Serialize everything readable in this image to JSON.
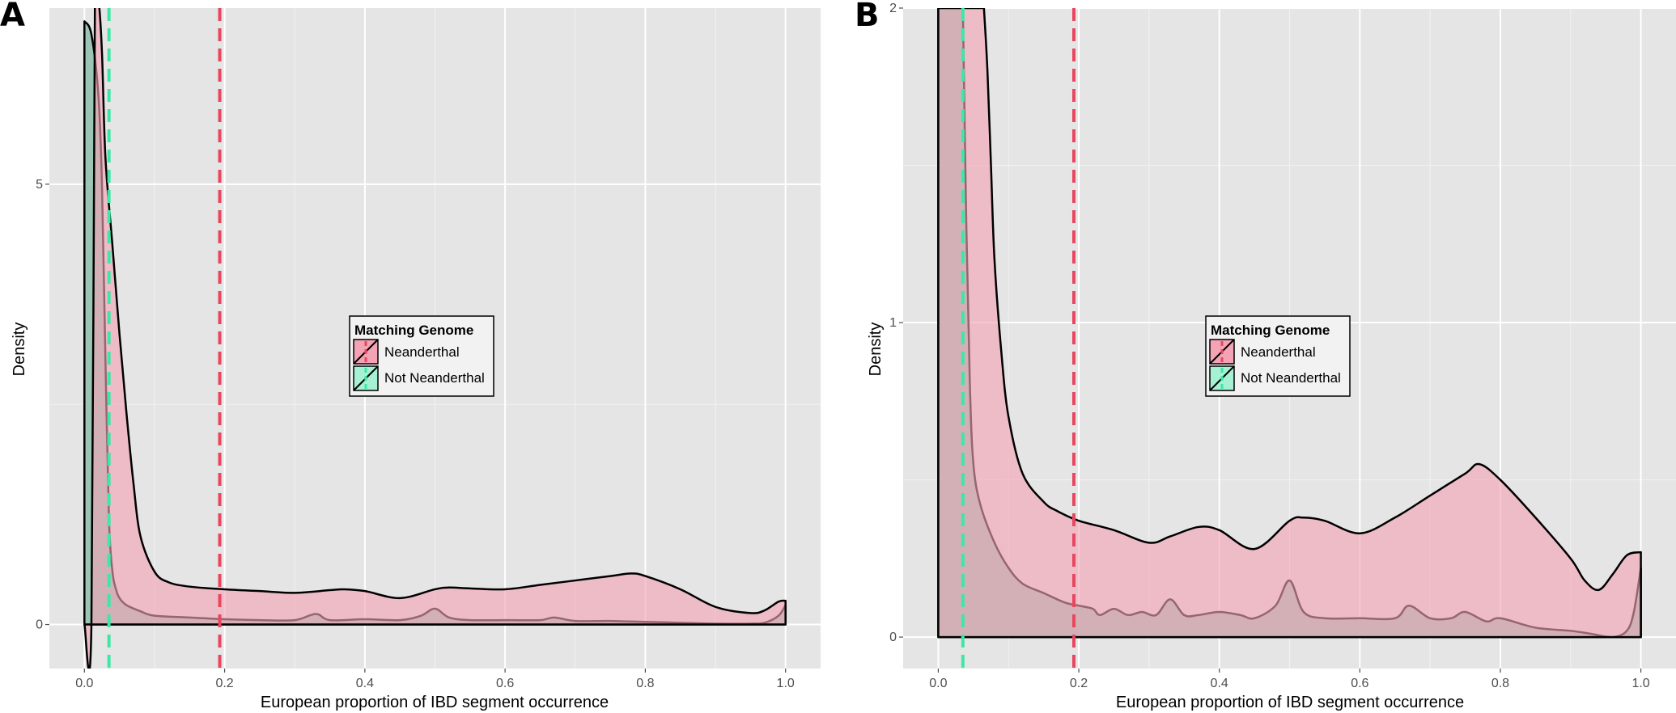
{
  "chart_data": [
    {
      "panel": "A",
      "type": "area",
      "xlabel": "European proportion of IBD segment occurrence",
      "ylabel": "Density",
      "xlim": [
        -0.05,
        1.05
      ],
      "ylim": [
        -0.5,
        7.0
      ],
      "xticks": [
        0.0,
        0.2,
        0.4,
        0.6,
        0.8,
        1.0
      ],
      "xtick_labels": [
        "0.0",
        "0.2",
        "0.4",
        "0.6",
        "0.8",
        "1.0"
      ],
      "yticks": [
        0,
        5
      ],
      "ytick_labels": [
        "0",
        "5"
      ],
      "grid": true,
      "legend": {
        "title": "Matching Genome",
        "placement": "center",
        "entries": [
          "Neanderthal",
          "Not Neanderthal"
        ]
      },
      "series": [
        {
          "name": "Neanderthal",
          "color": "#F4A3B4",
          "x": [
            0,
            0.01,
            0.015,
            0.02,
            0.025,
            0.03,
            0.04,
            0.05,
            0.06,
            0.07,
            0.08,
            0.1,
            0.12,
            0.15,
            0.2,
            0.25,
            0.3,
            0.35,
            0.37,
            0.4,
            0.45,
            0.5,
            0.52,
            0.55,
            0.6,
            0.65,
            0.7,
            0.75,
            0.78,
            0.8,
            0.85,
            0.9,
            0.95,
            0.97,
            0.99,
            1.0
          ],
          "y": [
            0,
            0,
            7.1,
            7.1,
            6.5,
            5.3,
            4.3,
            3.3,
            2.4,
            1.6,
            1.0,
            0.6,
            0.48,
            0.43,
            0.4,
            0.38,
            0.36,
            0.39,
            0.4,
            0.38,
            0.3,
            0.4,
            0.42,
            0.41,
            0.4,
            0.45,
            0.5,
            0.55,
            0.58,
            0.55,
            0.4,
            0.2,
            0.13,
            0.16,
            0.26,
            0.27
          ]
        },
        {
          "name": "Not Neanderthal",
          "color": "#A6F0D4",
          "x": [
            0,
            0.01,
            0.02,
            0.025,
            0.03,
            0.035,
            0.04,
            0.045,
            0.05,
            0.06,
            0.08,
            0.1,
            0.15,
            0.2,
            0.25,
            0.3,
            0.33,
            0.35,
            0.4,
            0.45,
            0.48,
            0.5,
            0.52,
            0.55,
            0.6,
            0.65,
            0.67,
            0.7,
            0.75,
            0.8,
            0.85,
            0.9,
            0.95,
            0.97,
            0.99,
            1.0
          ],
          "y": [
            6.85,
            6.7,
            6.0,
            5.0,
            3.0,
            1.2,
            0.6,
            0.4,
            0.3,
            0.22,
            0.15,
            0.1,
            0.08,
            0.06,
            0.05,
            0.05,
            0.12,
            0.05,
            0.06,
            0.05,
            0.1,
            0.18,
            0.08,
            0.05,
            0.05,
            0.05,
            0.08,
            0.04,
            0.04,
            0.03,
            0.02,
            0.01,
            0.01,
            0.02,
            0.1,
            0.22
          ]
        }
      ],
      "reference_lines": [
        {
          "series": "Not Neanderthal",
          "x": 0.035,
          "color": "#3DE8A6"
        },
        {
          "series": "Neanderthal",
          "x": 0.193,
          "color": "#E8475F"
        }
      ]
    },
    {
      "panel": "B",
      "type": "area",
      "xlabel": "European proportion of IBD segment occurrence",
      "ylabel": "Density",
      "xlim": [
        -0.05,
        1.05
      ],
      "ylim": [
        -0.1,
        2.0
      ],
      "xticks": [
        0.0,
        0.2,
        0.4,
        0.6,
        0.8,
        1.0
      ],
      "xtick_labels": [
        "0.0",
        "0.2",
        "0.4",
        "0.6",
        "0.8",
        "1.0"
      ],
      "yticks": [
        0,
        1,
        2
      ],
      "ytick_labels": [
        "0",
        "1",
        "2"
      ],
      "grid": true,
      "legend": {
        "title": "Matching Genome",
        "placement": "center",
        "entries": [
          "Neanderthal",
          "Not Neanderthal"
        ]
      },
      "series": [
        {
          "name": "Neanderthal",
          "color": "#F4A3B4",
          "x": [
            0.065,
            0.07,
            0.075,
            0.08,
            0.09,
            0.1,
            0.12,
            0.15,
            0.17,
            0.2,
            0.25,
            0.3,
            0.33,
            0.37,
            0.4,
            0.45,
            0.5,
            0.52,
            0.55,
            0.6,
            0.65,
            0.7,
            0.75,
            0.77,
            0.8,
            0.85,
            0.9,
            0.92,
            0.94,
            0.96,
            0.98,
            1.0
          ],
          "y": [
            2.0,
            1.8,
            1.5,
            1.2,
            0.9,
            0.7,
            0.52,
            0.43,
            0.4,
            0.37,
            0.34,
            0.3,
            0.32,
            0.35,
            0.34,
            0.28,
            0.37,
            0.38,
            0.37,
            0.33,
            0.38,
            0.45,
            0.52,
            0.55,
            0.5,
            0.38,
            0.25,
            0.18,
            0.15,
            0.2,
            0.26,
            0.27
          ]
        },
        {
          "name": "Not Neanderthal",
          "color": "#A6F0D4",
          "x": [
            0.035,
            0.04,
            0.045,
            0.05,
            0.06,
            0.08,
            0.1,
            0.12,
            0.15,
            0.18,
            0.2,
            0.22,
            0.23,
            0.25,
            0.27,
            0.29,
            0.31,
            0.33,
            0.35,
            0.37,
            0.4,
            0.43,
            0.45,
            0.48,
            0.5,
            0.52,
            0.55,
            0.6,
            0.65,
            0.67,
            0.7,
            0.73,
            0.75,
            0.78,
            0.8,
            0.85,
            0.9,
            0.93,
            0.96,
            0.98,
            0.99,
            1.0
          ],
          "y": [
            2.0,
            1.3,
            0.8,
            0.55,
            0.42,
            0.3,
            0.22,
            0.17,
            0.14,
            0.11,
            0.1,
            0.09,
            0.07,
            0.09,
            0.07,
            0.08,
            0.07,
            0.12,
            0.07,
            0.07,
            0.08,
            0.07,
            0.06,
            0.1,
            0.18,
            0.08,
            0.06,
            0.06,
            0.06,
            0.1,
            0.06,
            0.06,
            0.08,
            0.05,
            0.06,
            0.03,
            0.02,
            0.01,
            0.0,
            0.02,
            0.08,
            0.22
          ]
        }
      ],
      "reference_lines": [
        {
          "series": "Not Neanderthal",
          "x": 0.035,
          "color": "#3DE8A6"
        },
        {
          "series": "Neanderthal",
          "x": 0.193,
          "color": "#E8475F"
        }
      ]
    }
  ]
}
